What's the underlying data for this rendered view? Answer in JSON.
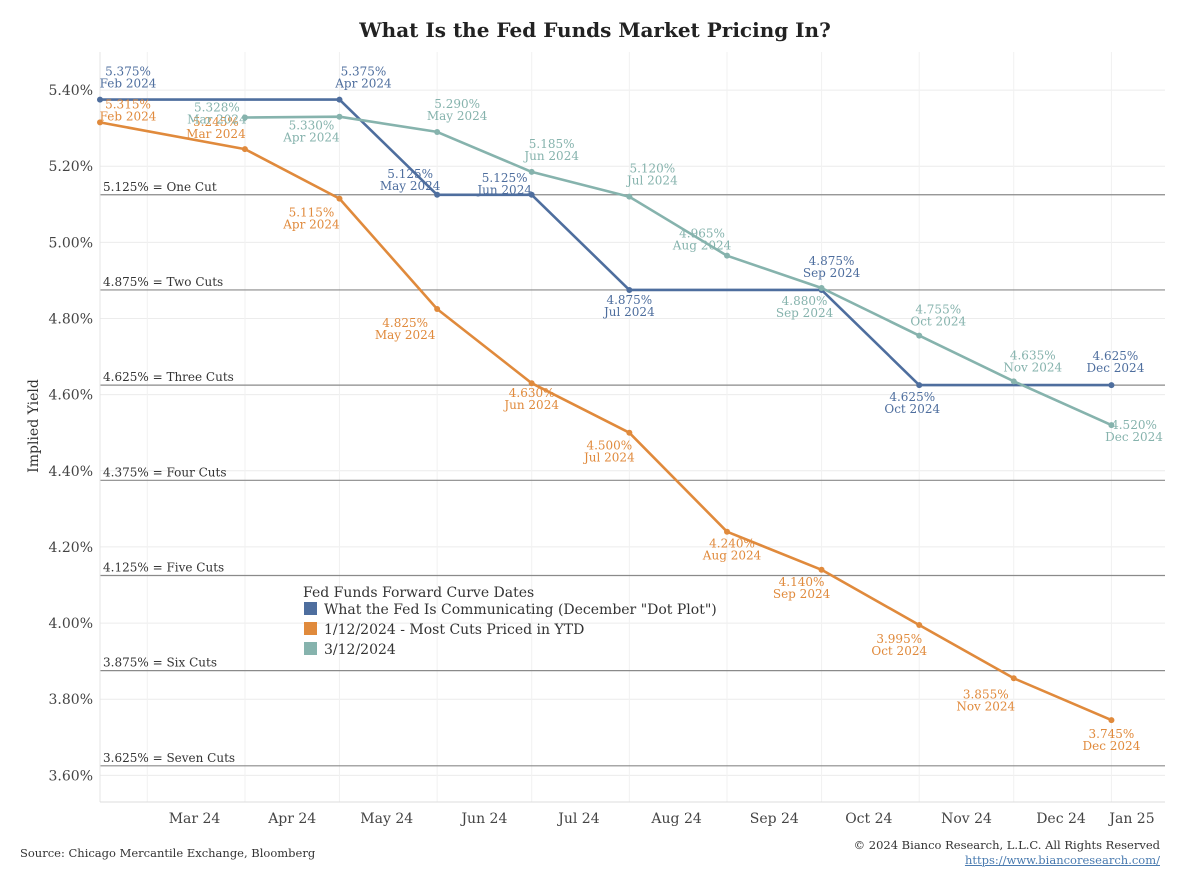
{
  "chart_data": {
    "type": "line",
    "title": "What Is the Fed Funds Market Pricing In?",
    "ylabel": "Implied Yield",
    "xlabel": "",
    "x_ticks": [
      "Mar 24",
      "Apr 24",
      "May 24",
      "Jun 24",
      "Jul 24",
      "Aug 24",
      "Sep 24",
      "Oct 24",
      "Nov 24",
      "Dec 24",
      "Jan 25"
    ],
    "y_ticks": [
      "3.60%",
      "3.80%",
      "4.00%",
      "4.20%",
      "4.40%",
      "4.60%",
      "4.80%",
      "5.00%",
      "5.20%",
      "5.40%"
    ],
    "y_tick_values": [
      3.6,
      3.8,
      4.0,
      4.2,
      4.4,
      4.6,
      4.8,
      5.0,
      5.2,
      5.4
    ],
    "ylim": [
      3.53,
      5.5
    ],
    "xlim": [
      "2024-02-15",
      "2025-01-18"
    ],
    "reference_lines": [
      {
        "value": 5.125,
        "label": "5.125% = One Cut"
      },
      {
        "value": 4.875,
        "label": "4.875% = Two Cuts"
      },
      {
        "value": 4.625,
        "label": "4.625% = Three Cuts"
      },
      {
        "value": 4.375,
        "label": "4.375% = Four Cuts"
      },
      {
        "value": 4.125,
        "label": "4.125% = Five Cuts"
      },
      {
        "value": 3.875,
        "label": "3.875% = Six Cuts"
      },
      {
        "value": 3.625,
        "label": "3.625% = Seven Cuts"
      }
    ],
    "legend_title": "Fed Funds Forward Curve Dates",
    "series": [
      {
        "name": "What the Fed Is Communicating (December \"Dot Plot\")",
        "color": "#4e6e9e",
        "points": [
          {
            "x": "2024-02-15",
            "y": 5.375,
            "value_label": "5.375%",
            "date_label": "Feb 2024"
          },
          {
            "x": "2024-05-01",
            "y": 5.375,
            "value_label": "5.375%",
            "date_label": "Apr 2024"
          },
          {
            "x": "2024-06-01",
            "y": 5.125,
            "value_label": "5.125%",
            "date_label": "May 2024"
          },
          {
            "x": "2024-07-01",
            "y": 5.125,
            "value_label": "5.125%",
            "date_label": "Jun 2024"
          },
          {
            "x": "2024-08-01",
            "y": 4.875,
            "value_label": "4.875%",
            "date_label": "Jul 2024"
          },
          {
            "x": "2024-10-01",
            "y": 4.875,
            "value_label": "4.875%",
            "date_label": "Sep 2024"
          },
          {
            "x": "2024-11-01",
            "y": 4.625,
            "value_label": "4.625%",
            "date_label": "Oct 2024"
          },
          {
            "x": "2025-01-01",
            "y": 4.625,
            "value_label": "4.625%",
            "date_label": "Dec 2024"
          }
        ]
      },
      {
        "name": "1/12/2024 - Most Cuts Priced in YTD",
        "color": "#e08a3c",
        "points": [
          {
            "x": "2024-02-15",
            "y": 5.315,
            "value_label": "5.315%",
            "date_label": "Feb 2024"
          },
          {
            "x": "2024-04-01",
            "y": 5.245,
            "value_label": "5.245%",
            "date_label": "Mar 2024"
          },
          {
            "x": "2024-05-01",
            "y": 5.115,
            "value_label": "5.115%",
            "date_label": "Apr 2024"
          },
          {
            "x": "2024-06-01",
            "y": 4.825,
            "value_label": "4.825%",
            "date_label": "May 2024"
          },
          {
            "x": "2024-07-01",
            "y": 4.63,
            "value_label": "4.630%",
            "date_label": "Jun 2024"
          },
          {
            "x": "2024-08-01",
            "y": 4.5,
            "value_label": "4.500%",
            "date_label": "Jul 2024"
          },
          {
            "x": "2024-09-01",
            "y": 4.24,
            "value_label": "4.240%",
            "date_label": "Aug 2024"
          },
          {
            "x": "2024-10-01",
            "y": 4.14,
            "value_label": "4.140%",
            "date_label": "Sep 2024"
          },
          {
            "x": "2024-11-01",
            "y": 3.995,
            "value_label": "3.995%",
            "date_label": "Oct 2024"
          },
          {
            "x": "2024-12-01",
            "y": 3.855,
            "value_label": "3.855%",
            "date_label": "Nov 2024"
          },
          {
            "x": "2025-01-01",
            "y": 3.745,
            "value_label": "3.745%",
            "date_label": "Dec 2024"
          }
        ]
      },
      {
        "name": "3/12/2024",
        "color": "#86b3ad",
        "points": [
          {
            "x": "2024-04-01",
            "y": 5.328,
            "value_label": "5.328%",
            "date_label": "Mar 2024"
          },
          {
            "x": "2024-05-01",
            "y": 5.33,
            "value_label": "5.330%",
            "date_label": "Apr 2024"
          },
          {
            "x": "2024-06-01",
            "y": 5.29,
            "value_label": "5.290%",
            "date_label": "May 2024"
          },
          {
            "x": "2024-07-01",
            "y": 5.185,
            "value_label": "5.185%",
            "date_label": "Jun 2024"
          },
          {
            "x": "2024-08-01",
            "y": 5.12,
            "value_label": "5.120%",
            "date_label": "Jul 2024"
          },
          {
            "x": "2024-09-01",
            "y": 4.965,
            "value_label": "4.965%",
            "date_label": "Aug 2024"
          },
          {
            "x": "2024-10-01",
            "y": 4.88,
            "value_label": "4.880%",
            "date_label": "Sep 2024"
          },
          {
            "x": "2024-11-01",
            "y": 4.755,
            "value_label": "4.755%",
            "date_label": "Oct 2024"
          },
          {
            "x": "2024-12-01",
            "y": 4.635,
            "value_label": "4.635%",
            "date_label": "Nov 2024"
          },
          {
            "x": "2025-01-01",
            "y": 4.52,
            "value_label": "4.520%",
            "date_label": "Dec 2024"
          }
        ]
      }
    ]
  },
  "footer": {
    "source": "Source: Chicago Mercantile Exchange, Bloomberg",
    "copyright": "© 2024 Bianco Research, L.L.C. All Rights Reserved",
    "url": "https://www.biancoresearch.com/"
  }
}
